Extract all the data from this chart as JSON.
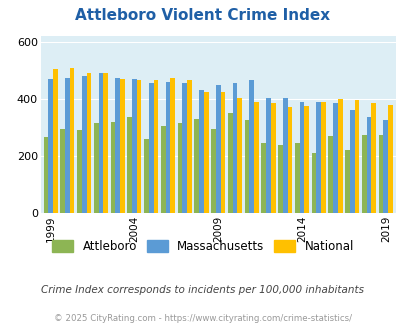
{
  "title": "Attleboro Violent Crime Index",
  "years": [
    1999,
    2000,
    2001,
    2002,
    2003,
    2004,
    2005,
    2006,
    2007,
    2008,
    2009,
    2010,
    2011,
    2012,
    2013,
    2014,
    2015,
    2016,
    2017,
    2018,
    2019
  ],
  "attleboro": [
    265,
    295,
    290,
    315,
    320,
    335,
    260,
    305,
    315,
    330,
    295,
    350,
    325,
    245,
    240,
    245,
    210,
    270,
    220,
    275,
    275
  ],
  "massachusetts": [
    470,
    475,
    480,
    490,
    475,
    470,
    455,
    460,
    455,
    430,
    450,
    455,
    465,
    405,
    405,
    390,
    390,
    385,
    360,
    335,
    325
  ],
  "national": [
    505,
    510,
    490,
    490,
    470,
    465,
    465,
    475,
    465,
    425,
    425,
    405,
    390,
    385,
    370,
    375,
    390,
    400,
    395,
    385,
    380
  ],
  "attleboro_color": "#8db554",
  "massachusetts_color": "#5b9bd5",
  "national_color": "#ffc000",
  "bg_color": "#ddeef5",
  "ylim": [
    0,
    620
  ],
  "yticks": [
    0,
    200,
    400,
    600
  ],
  "subtitle": "Crime Index corresponds to incidents per 100,000 inhabitants",
  "footer": "© 2025 CityRating.com - https://www.cityrating.com/crime-statistics/",
  "title_color": "#1f5fa6",
  "subtitle_color": "#444444",
  "footer_color": "#999999",
  "tick_years": [
    1999,
    2004,
    2009,
    2014,
    2019
  ]
}
